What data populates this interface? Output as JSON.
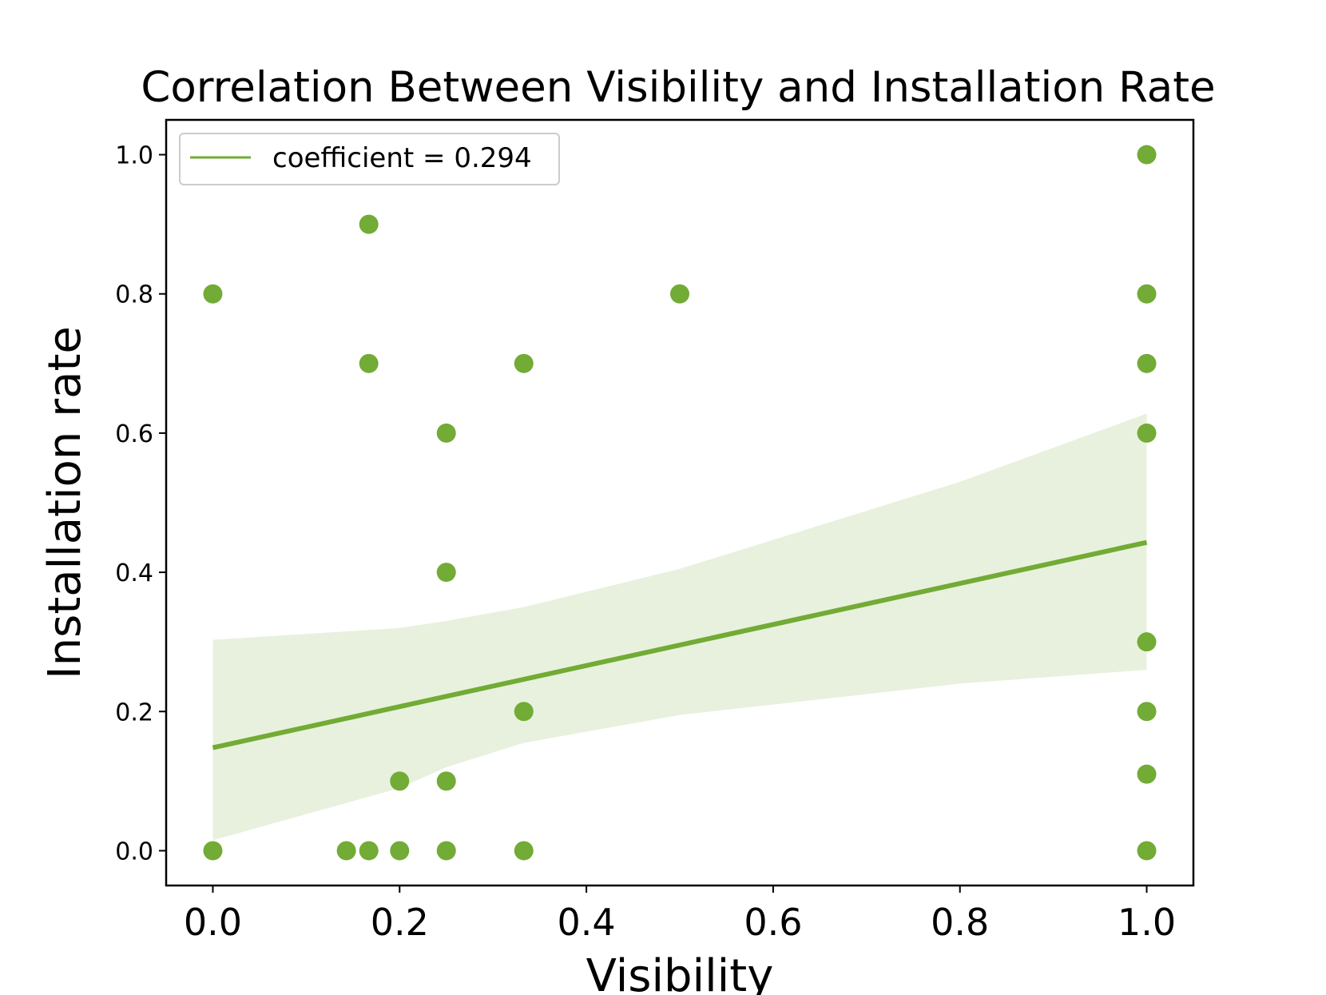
{
  "chart_data": {
    "type": "scatter",
    "title": "Correlation Between Visibility and Installation Rate",
    "xlabel": "Visibility",
    "ylabel": "Installation rate",
    "xlim": [
      -0.05,
      1.05
    ],
    "ylim": [
      -0.05,
      1.05
    ],
    "xticks": [
      "0.0",
      "0.2",
      "0.4",
      "0.6",
      "0.8",
      "1.0"
    ],
    "yticks": [
      "0.0",
      "0.2",
      "0.4",
      "0.6",
      "0.8",
      "1.0"
    ],
    "grid": false,
    "legend": {
      "position": "top-left",
      "label": "coefficient = 0.294"
    },
    "color": "#72ab35",
    "band_color": "#e8f1dd",
    "points": [
      {
        "x": 0.0,
        "y": 0.8
      },
      {
        "x": 0.0,
        "y": 0.0
      },
      {
        "x": 0.143,
        "y": 0.0
      },
      {
        "x": 0.167,
        "y": 0.9
      },
      {
        "x": 0.167,
        "y": 0.7
      },
      {
        "x": 0.167,
        "y": 0.0
      },
      {
        "x": 0.2,
        "y": 0.1
      },
      {
        "x": 0.2,
        "y": 0.0
      },
      {
        "x": 0.25,
        "y": 0.6
      },
      {
        "x": 0.25,
        "y": 0.4
      },
      {
        "x": 0.25,
        "y": 0.1
      },
      {
        "x": 0.25,
        "y": 0.0
      },
      {
        "x": 0.333,
        "y": 0.7
      },
      {
        "x": 0.333,
        "y": 0.2
      },
      {
        "x": 0.333,
        "y": 0.0
      },
      {
        "x": 0.5,
        "y": 0.8
      },
      {
        "x": 1.0,
        "y": 1.0
      },
      {
        "x": 1.0,
        "y": 0.8
      },
      {
        "x": 1.0,
        "y": 0.7
      },
      {
        "x": 1.0,
        "y": 0.6
      },
      {
        "x": 1.0,
        "y": 0.3
      },
      {
        "x": 1.0,
        "y": 0.2
      },
      {
        "x": 1.0,
        "y": 0.11
      },
      {
        "x": 1.0,
        "y": 0.0
      }
    ],
    "regression": {
      "x": [
        0.0,
        1.0
      ],
      "y": [
        0.148,
        0.443
      ]
    },
    "confidence_band": {
      "x": [
        0.0,
        0.2,
        0.25,
        0.333,
        0.5,
        0.8,
        1.0
      ],
      "lower": [
        0.015,
        0.09,
        0.12,
        0.155,
        0.195,
        0.24,
        0.26
      ],
      "upper": [
        0.303,
        0.32,
        0.33,
        0.35,
        0.405,
        0.53,
        0.628
      ]
    }
  }
}
